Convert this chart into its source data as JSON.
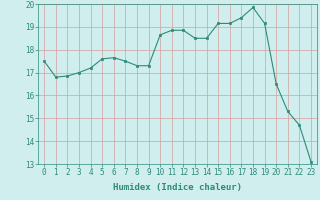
{
  "x": [
    0,
    1,
    2,
    3,
    4,
    5,
    6,
    7,
    8,
    9,
    10,
    11,
    12,
    13,
    14,
    15,
    16,
    17,
    18,
    19,
    20,
    21,
    22,
    23
  ],
  "y": [
    17.5,
    16.8,
    16.85,
    17.0,
    17.2,
    17.6,
    17.65,
    17.5,
    17.3,
    17.3,
    18.65,
    18.85,
    18.85,
    18.5,
    18.5,
    19.15,
    19.15,
    19.4,
    19.85,
    19.15,
    16.5,
    15.3,
    14.7,
    13.1
  ],
  "line_color": "#2d8b7a",
  "marker_color": "#2d8b7a",
  "bg_color": "#d0eeee",
  "grid_color": "#d4a0a0",
  "xlabel": "Humidex (Indice chaleur)",
  "ylim": [
    13,
    20
  ],
  "xlim": [
    -0.5,
    23.5
  ],
  "yticks": [
    13,
    14,
    15,
    16,
    17,
    18,
    19,
    20
  ],
  "xticks": [
    0,
    1,
    2,
    3,
    4,
    5,
    6,
    7,
    8,
    9,
    10,
    11,
    12,
    13,
    14,
    15,
    16,
    17,
    18,
    19,
    20,
    21,
    22,
    23
  ],
  "tick_color": "#2d8b7a",
  "label_color": "#2d8b7a",
  "font_size_label": 6.5,
  "font_size_tick": 5.5
}
